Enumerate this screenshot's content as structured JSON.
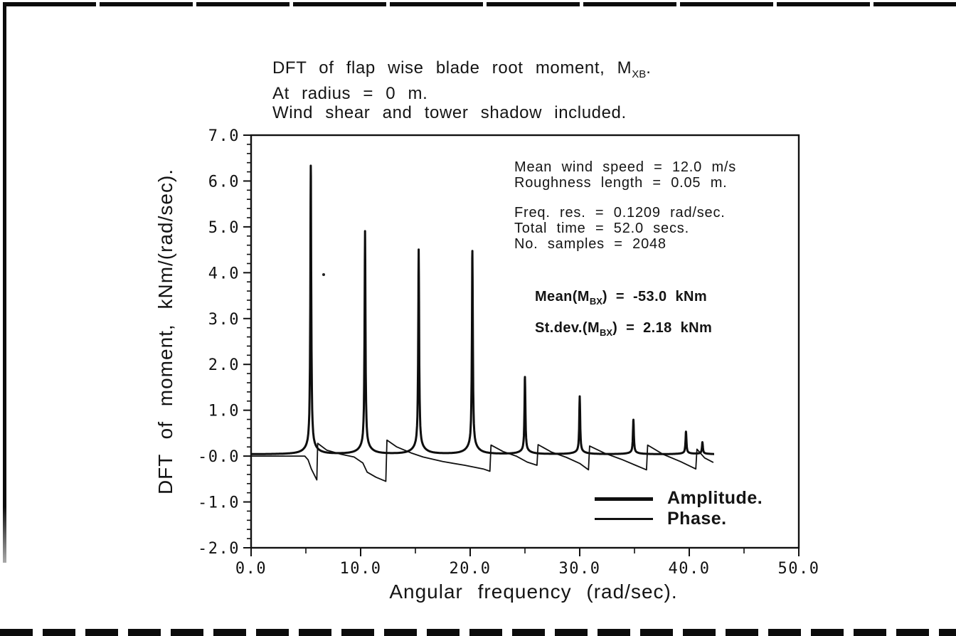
{
  "header": {
    "line1_prefix": "DFT of flap wise blade root moment, M",
    "line1_sub": "XB",
    "line1_suffix": ".",
    "line2": "At radius = 0 m.",
    "line3": "Wind shear and tower shadow included."
  },
  "annotations": {
    "wind": [
      "Mean wind speed = 12.0 m/s",
      "Roughness length = 0.05 m."
    ],
    "sampling": [
      "Freq. res. = 0.1209 rad/sec.",
      "Total time = 52.0 secs.",
      "No. samples = 2048"
    ],
    "stats": {
      "mean_prefix": "Mean(M",
      "mean_sub": "BX",
      "mean_suffix": ") = -53.0 kNm",
      "stdev_prefix": "St.dev.(M",
      "stdev_sub": "BX",
      "stdev_suffix": ") = 2.18 kNm"
    }
  },
  "colors": {
    "ink": "#101010",
    "paper": "#ffffff"
  },
  "chart_data": {
    "type": "line",
    "title": "DFT of flap wise blade root moment, M_XB. At radius = 0 m. Wind shear and tower shadow included.",
    "xlabel": "Angular frequency (rad/sec).",
    "ylabel": "DFT of moment, kNm/(rad/sec).",
    "xlim": [
      0,
      50
    ],
    "ylim": [
      -2,
      7
    ],
    "grid": false,
    "legend_position": "inside lower right",
    "x_major_ticks": [
      0,
      10,
      20,
      30,
      40,
      50
    ],
    "x_tick_labels": [
      "0.0",
      "10.0",
      "20.0",
      "30.0",
      "40.0",
      "50.0"
    ],
    "x_minor_ticks": [
      5,
      15,
      25,
      35,
      45
    ],
    "y_major_ticks": [
      7,
      6,
      5,
      4,
      3,
      2,
      1,
      0,
      -1,
      -2
    ],
    "y_tick_labels": [
      "7.0",
      "6.0",
      "5.0",
      "4.0",
      "3.0",
      "2.0",
      "1.0",
      "-0.0",
      "-1.0",
      "-2.0"
    ],
    "y_minor_step": 0.2,
    "series": [
      {
        "name": "Amplitude.",
        "line": "thick",
        "baseline": 0.04,
        "x_range": [
          0,
          42.3
        ],
        "peaks": [
          {
            "x": 5.45,
            "height": 6.33
          },
          {
            "x": 10.4,
            "height": 4.9
          },
          {
            "x": 15.3,
            "height": 4.5
          },
          {
            "x": 20.2,
            "height": 4.47
          },
          {
            "x": 25.0,
            "height": 1.72
          },
          {
            "x": 30.0,
            "height": 1.3
          },
          {
            "x": 34.9,
            "height": 0.79
          },
          {
            "x": 39.7,
            "height": 0.53
          },
          {
            "x": 41.2,
            "height": 0.3
          }
        ]
      },
      {
        "name": "Phase.",
        "line": "thin",
        "points": [
          [
            0,
            0
          ],
          [
            4.9,
            0
          ],
          [
            5.2,
            -0.08
          ],
          [
            5.5,
            -0.28
          ],
          [
            6.0,
            -0.52
          ],
          [
            6.08,
            0.28
          ],
          [
            6.9,
            0.13
          ],
          [
            8.2,
            0.04
          ],
          [
            9.4,
            -0.02
          ],
          [
            10.2,
            -0.15
          ],
          [
            10.6,
            -0.35
          ],
          [
            11.4,
            -0.46
          ],
          [
            12.3,
            -0.55
          ],
          [
            12.4,
            0.35
          ],
          [
            13.3,
            0.2
          ],
          [
            14.6,
            0.07
          ],
          [
            15.7,
            -0.02
          ],
          [
            17.5,
            -0.12
          ],
          [
            19.5,
            -0.2
          ],
          [
            21.2,
            -0.28
          ],
          [
            21.8,
            -0.33
          ],
          [
            21.9,
            0.24
          ],
          [
            23.0,
            0.1
          ],
          [
            24.2,
            0.0
          ],
          [
            25.2,
            -0.13
          ],
          [
            26.1,
            -0.2
          ],
          [
            26.2,
            0.25
          ],
          [
            27.4,
            0.09
          ],
          [
            28.8,
            -0.03
          ],
          [
            30.0,
            -0.16
          ],
          [
            30.8,
            -0.3
          ],
          [
            30.9,
            0.22
          ],
          [
            32.3,
            0.06
          ],
          [
            33.8,
            -0.07
          ],
          [
            35.1,
            -0.2
          ],
          [
            36.1,
            -0.3
          ],
          [
            36.2,
            0.24
          ],
          [
            37.6,
            0.04
          ],
          [
            39.2,
            -0.12
          ],
          [
            40.6,
            -0.28
          ],
          [
            40.7,
            0.15
          ],
          [
            41.4,
            -0.04
          ],
          [
            42.2,
            -0.14
          ]
        ]
      }
    ]
  }
}
